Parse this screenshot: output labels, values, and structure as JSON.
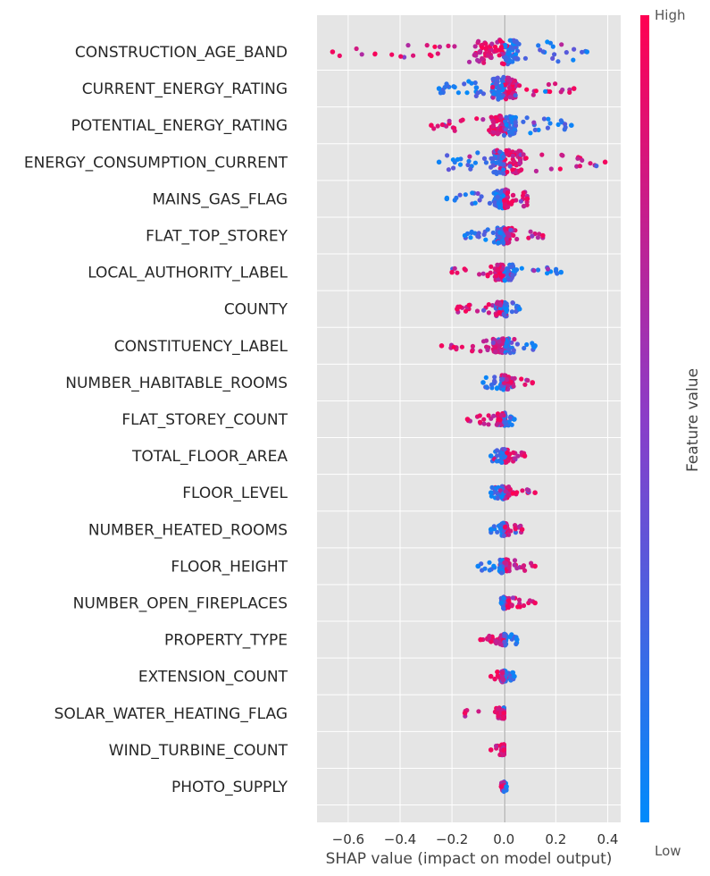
{
  "chart_data": {
    "type": "beeswarm",
    "xlabel": "SHAP value (impact on model output)",
    "xlim": [
      -0.72,
      0.45
    ],
    "xticks": [
      -0.6,
      -0.4,
      -0.2,
      0.0,
      0.2,
      0.4
    ],
    "xtick_labels": [
      "−0.6",
      "−0.4",
      "−0.2",
      "0.0",
      "0.2",
      "0.4"
    ],
    "colorbar": {
      "label": "Feature value",
      "high_label": "High",
      "low_label": "Low",
      "high_color": "#ff0052",
      "low_color": "#008bfb"
    },
    "features": [
      {
        "name": "CONSTRUCTION_AGE_BAND",
        "min": -0.66,
        "max": 0.32,
        "high_side": "neg",
        "spread": 0.9
      },
      {
        "name": "CURRENT_ENERGY_RATING",
        "min": -0.25,
        "max": 0.27,
        "high_side": "pos",
        "spread": 0.8
      },
      {
        "name": "POTENTIAL_ENERGY_RATING",
        "min": -0.28,
        "max": 0.26,
        "high_side": "neg",
        "spread": 0.7
      },
      {
        "name": "ENERGY_CONSUMPTION_CURRENT",
        "min": -0.25,
        "max": 0.39,
        "high_side": "pos",
        "spread": 0.9
      },
      {
        "name": "MAINS_GAS_FLAG",
        "min": -0.22,
        "max": 0.09,
        "high_side": "pos",
        "spread": 0.6
      },
      {
        "name": "FLAT_TOP_STOREY",
        "min": -0.15,
        "max": 0.15,
        "high_side": "pos",
        "spread": 0.5
      },
      {
        "name": "LOCAL_AUTHORITY_LABEL",
        "min": -0.2,
        "max": 0.22,
        "high_side": "neg",
        "spread": 0.5
      },
      {
        "name": "COUNTY",
        "min": -0.18,
        "max": 0.06,
        "high_side": "neg",
        "spread": 0.4
      },
      {
        "name": "CONSTITUENCY_LABEL",
        "min": -0.24,
        "max": 0.12,
        "high_side": "neg",
        "spread": 0.4
      },
      {
        "name": "NUMBER_HABITABLE_ROOMS",
        "min": -0.08,
        "max": 0.11,
        "high_side": "pos",
        "spread": 0.4
      },
      {
        "name": "FLAT_STOREY_COUNT",
        "min": -0.14,
        "max": 0.04,
        "high_side": "neg",
        "spread": 0.3
      },
      {
        "name": "TOTAL_FLOOR_AREA",
        "min": -0.05,
        "max": 0.08,
        "high_side": "pos",
        "spread": 0.35
      },
      {
        "name": "FLOOR_LEVEL",
        "min": -0.05,
        "max": 0.12,
        "high_side": "pos",
        "spread": 0.3
      },
      {
        "name": "NUMBER_HEATED_ROOMS",
        "min": -0.05,
        "max": 0.07,
        "high_side": "pos",
        "spread": 0.3
      },
      {
        "name": "FLOOR_HEIGHT",
        "min": -0.1,
        "max": 0.12,
        "high_side": "pos",
        "spread": 0.35
      },
      {
        "name": "NUMBER_OPEN_FIREPLACES",
        "min": -0.01,
        "max": 0.12,
        "high_side": "pos",
        "spread": 0.25
      },
      {
        "name": "PROPERTY_TYPE",
        "min": -0.09,
        "max": 0.05,
        "high_side": "neg",
        "spread": 0.25
      },
      {
        "name": "EXTENSION_COUNT",
        "min": -0.05,
        "max": 0.04,
        "high_side": "neg",
        "spread": 0.25
      },
      {
        "name": "SOLAR_WATER_HEATING_FLAG",
        "min": -0.15,
        "max": 0.0,
        "high_side": "neg",
        "spread": 0.2
      },
      {
        "name": "WIND_TURBINE_COUNT",
        "min": -0.05,
        "max": 0.0,
        "high_side": "neg",
        "spread": 0.2
      },
      {
        "name": "PHOTO_SUPPLY",
        "min": -0.01,
        "max": 0.01,
        "high_side": "neg",
        "spread": 0.15
      }
    ]
  }
}
